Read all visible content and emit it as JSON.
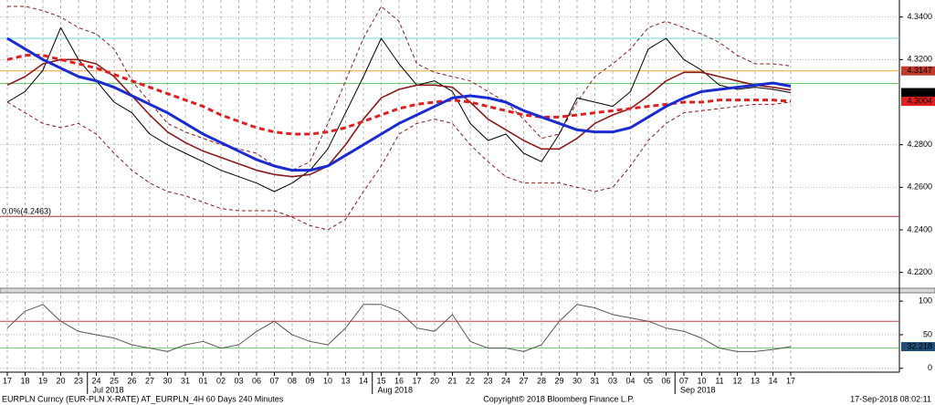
{
  "chart_data": [
    {
      "type": "line",
      "categories": [
        "17",
        "18",
        "19",
        "20",
        "23",
        "24",
        "25",
        "26",
        "27",
        "30",
        "31",
        "01",
        "02",
        "03",
        "06",
        "07",
        "08",
        "09",
        "10",
        "13",
        "14",
        "15",
        "16",
        "17",
        "20",
        "21",
        "22",
        "23",
        "24",
        "27",
        "28",
        "29",
        "30",
        "31",
        "03",
        "04",
        "05",
        "06",
        "07",
        "10",
        "11",
        "12",
        "13",
        "14",
        "17"
      ],
      "months": [
        "Jul 2018",
        "Aug 2018",
        "Sep 2018"
      ],
      "ylim": [
        4.213,
        4.348
      ],
      "yticks": [
        {
          "value": 4.22,
          "label": "4.2200"
        },
        {
          "value": 4.24,
          "label": "4.2400"
        },
        {
          "value": 4.26,
          "label": "4.2600"
        },
        {
          "value": 4.28,
          "label": "4.2800"
        },
        {
          "value": 4.32,
          "label": "4.3200"
        },
        {
          "value": 4.34,
          "label": "4.3400"
        }
      ],
      "grid": true,
      "levels": [
        {
          "value": 4.33,
          "color": "#6fd6d6"
        },
        {
          "value": 4.3147,
          "color": "#e8a040"
        },
        {
          "value": 4.3088,
          "color": "#6cc86c"
        },
        {
          "value": 4.2463,
          "color": "#a83030",
          "label": "0.0%(4.2463)"
        }
      ],
      "series": [
        {
          "name": "Upper band",
          "color": "#8b1a1a",
          "style": "dashed",
          "values": [
            4.345,
            4.345,
            4.343,
            4.34,
            4.335,
            4.332,
            4.325,
            4.31,
            4.3,
            4.29,
            4.286,
            4.283,
            4.28,
            4.278,
            4.276,
            4.27,
            4.268,
            4.272,
            4.29,
            4.31,
            4.33,
            4.345,
            4.338,
            4.318,
            4.314,
            4.312,
            4.31,
            4.305,
            4.3,
            4.292,
            4.283,
            4.285,
            4.3,
            4.312,
            4.318,
            4.325,
            4.335,
            4.338,
            4.335,
            4.332,
            4.328,
            4.322,
            4.318,
            4.318,
            4.317
          ]
        },
        {
          "name": "Lower band",
          "color": "#8b1a1a",
          "style": "dashed",
          "values": [
            4.3,
            4.295,
            4.29,
            4.288,
            4.29,
            4.285,
            4.276,
            4.268,
            4.262,
            4.258,
            4.256,
            4.253,
            4.25,
            4.249,
            4.249,
            4.249,
            4.246,
            4.242,
            4.24,
            4.245,
            4.258,
            4.27,
            4.285,
            4.29,
            4.292,
            4.29,
            4.28,
            4.272,
            4.265,
            4.262,
            4.262,
            4.262,
            4.26,
            4.258,
            4.26,
            4.27,
            4.282,
            4.29,
            4.295,
            4.296,
            4.297,
            4.298,
            4.299,
            4.299,
            4.3
          ]
        },
        {
          "name": "Close",
          "color": "#000000",
          "style": "thin",
          "values": [
            4.3,
            4.305,
            4.315,
            4.335,
            4.32,
            4.31,
            4.3,
            4.295,
            4.285,
            4.28,
            4.276,
            4.272,
            4.268,
            4.265,
            4.262,
            4.258,
            4.262,
            4.268,
            4.278,
            4.295,
            4.312,
            4.33,
            4.318,
            4.308,
            4.31,
            4.305,
            4.29,
            4.282,
            4.285,
            4.276,
            4.272,
            4.285,
            4.302,
            4.3,
            4.298,
            4.305,
            4.325,
            4.33,
            4.32,
            4.315,
            4.308,
            4.306,
            4.307,
            4.306,
            4.3045
          ]
        },
        {
          "name": "MA dark red",
          "color": "#8b1a1a",
          "style": "medium",
          "values": [
            4.308,
            4.312,
            4.318,
            4.32,
            4.32,
            4.318,
            4.312,
            4.303,
            4.294,
            4.286,
            4.281,
            4.277,
            4.274,
            4.271,
            4.268,
            4.266,
            4.265,
            4.266,
            4.27,
            4.28,
            4.292,
            4.302,
            4.306,
            4.308,
            4.308,
            4.307,
            4.3,
            4.292,
            4.287,
            4.282,
            4.278,
            4.278,
            4.283,
            4.29,
            4.294,
            4.297,
            4.303,
            4.31,
            4.314,
            4.314,
            4.312,
            4.31,
            4.308,
            4.307,
            4.3057
          ]
        },
        {
          "name": "MA red",
          "color": "#e02020",
          "style": "dashed-thick",
          "values": [
            4.32,
            4.322,
            4.322,
            4.32,
            4.318,
            4.316,
            4.313,
            4.31,
            4.307,
            4.304,
            4.301,
            4.298,
            4.294,
            4.291,
            4.288,
            4.286,
            4.285,
            4.285,
            4.286,
            4.288,
            4.291,
            4.294,
            4.297,
            4.299,
            4.3,
            4.301,
            4.3,
            4.298,
            4.296,
            4.294,
            4.293,
            4.293,
            4.294,
            4.295,
            4.296,
            4.297,
            4.298,
            4.299,
            4.3,
            4.3,
            4.301,
            4.301,
            4.301,
            4.301,
            4.3004
          ]
        },
        {
          "name": "MA blue",
          "color": "#1a2bd0",
          "style": "thick",
          "values": [
            4.33,
            4.325,
            4.32,
            4.316,
            4.312,
            4.31,
            4.307,
            4.303,
            4.299,
            4.295,
            4.29,
            4.285,
            4.281,
            4.277,
            4.273,
            4.27,
            4.268,
            4.268,
            4.27,
            4.275,
            4.28,
            4.285,
            4.29,
            4.294,
            4.298,
            4.302,
            4.303,
            4.302,
            4.3,
            4.296,
            4.293,
            4.29,
            4.287,
            4.286,
            4.286,
            4.288,
            4.293,
            4.298,
            4.302,
            4.305,
            4.306,
            4.307,
            4.308,
            4.309,
            4.3075
          ]
        }
      ],
      "last_values": [
        {
          "value": 4.3147,
          "color": "#c0392b"
        },
        {
          "value": 4.3045,
          "color": "#000000"
        },
        {
          "value": 4.3004,
          "color": "#e02020"
        }
      ]
    },
    {
      "type": "line",
      "ylim": [
        -3,
        111
      ],
      "yticks": [
        0,
        50,
        100
      ],
      "grid": true,
      "levels": [
        {
          "value": 70,
          "color": "#c04040"
        },
        {
          "value": 30,
          "color": "#6cc86c"
        }
      ],
      "series": [
        {
          "name": "Oscillator",
          "color": "#555555",
          "style": "thin",
          "values": [
            60,
            85,
            95,
            70,
            55,
            50,
            45,
            35,
            30,
            25,
            35,
            40,
            30,
            35,
            55,
            70,
            50,
            40,
            35,
            60,
            95,
            95,
            85,
            60,
            55,
            80,
            40,
            30,
            30,
            25,
            35,
            70,
            95,
            90,
            80,
            75,
            70,
            60,
            55,
            45,
            30,
            25,
            25,
            28,
            32.218
          ]
        }
      ],
      "last_values": [
        {
          "value": 32.218,
          "color": "#1f4e79"
        }
      ]
    }
  ],
  "footer": {
    "left": "EURPLN Curncy (EUR-PLN X-RATE) AT_EURPLN_4H 60 Days 240 Minutes",
    "center": "Copyright© 2018 Bloomberg Finance L.P.",
    "right": "17-Sep-2018 08:02:11"
  }
}
